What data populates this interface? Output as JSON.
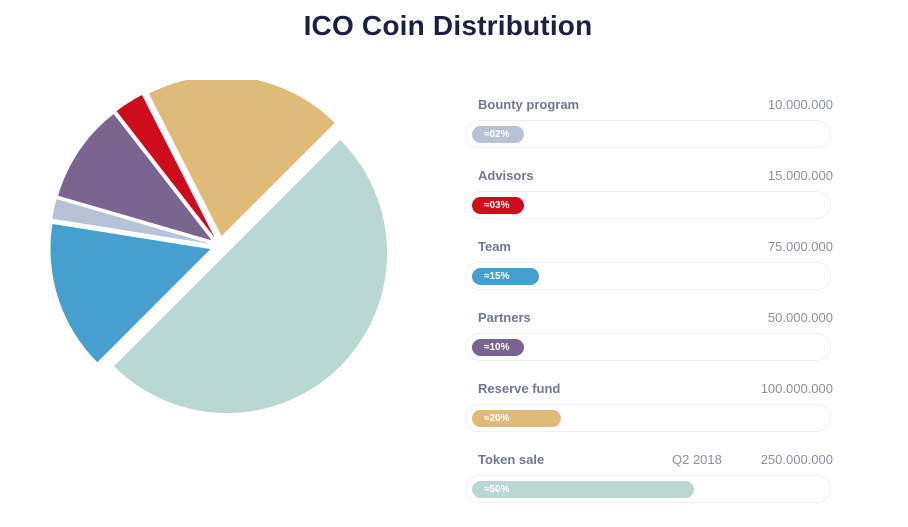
{
  "title": "ICO Coin Distribution",
  "chart_data": {
    "type": "pie",
    "title": "ICO Coin Distribution",
    "slices": [
      {
        "label": "Bounty program",
        "percent": 2,
        "percent_label": "≈02%",
        "amount": "10.000.000",
        "note": "",
        "color": "#b7c2d6"
      },
      {
        "label": "Advisors",
        "percent": 3,
        "percent_label": "≈03%",
        "amount": "15.000.000",
        "note": "",
        "color": "#cf0c1c"
      },
      {
        "label": "Team",
        "percent": 15,
        "percent_label": "≈15%",
        "amount": "75.000.000",
        "note": "",
        "color": "#45a0d0"
      },
      {
        "label": "Partners",
        "percent": 10,
        "percent_label": "≈10%",
        "amount": "50.000.000",
        "note": "",
        "color": "#79658f"
      },
      {
        "label": "Reserve fund",
        "percent": 20,
        "percent_label": "≈20%",
        "amount": "100.000.000",
        "note": "",
        "color": "#dfba79"
      },
      {
        "label": "Token sale",
        "percent": 50,
        "percent_label": "≈50%",
        "amount": "250.000.000",
        "note": "Q2 2018",
        "color": "#bad8d3"
      }
    ]
  }
}
